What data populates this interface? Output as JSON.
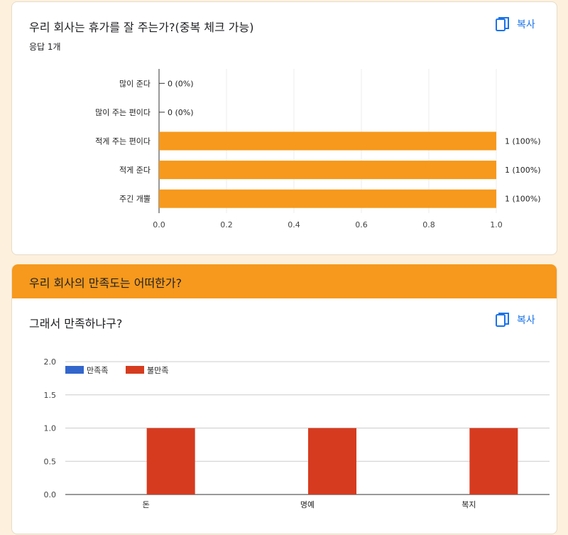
{
  "card1": {
    "title": "우리 회사는 휴가를 잘 주는가?(중복 체크 가능)",
    "response_count": "응답 1개",
    "copy_label": "복사"
  },
  "section2": {
    "header": "우리 회사의 만족도는 어떠한가?",
    "question_title": "그래서 만족하냐구?",
    "copy_label": "복사"
  },
  "colors": {
    "orange": "#f6991c",
    "bar_orange": "#f6991c",
    "blue": "#3366cc",
    "red": "#d63b1f",
    "link_blue": "#1a73e8"
  },
  "chart_data": [
    {
      "type": "bar",
      "orientation": "horizontal",
      "categories": [
        "많이 준다",
        "많이 주는 편이다",
        "적게 주는 편이다",
        "적게 준다",
        "주긴 개뿔"
      ],
      "values": [
        0,
        0,
        1,
        1,
        1
      ],
      "data_labels": [
        "0 (0%)",
        "0 (0%)",
        "1 (100%)",
        "1 (100%)",
        "1 (100%)"
      ],
      "xlim": [
        0,
        1.0
      ],
      "x_ticks": [
        "0.0",
        "0.2",
        "0.4",
        "0.6",
        "0.8",
        "1.0"
      ],
      "grid": true,
      "color": "#f6991c"
    },
    {
      "type": "bar",
      "orientation": "vertical",
      "categories": [
        "돈",
        "명예",
        "복지"
      ],
      "series": [
        {
          "name": "만족족",
          "values": [
            0,
            0,
            0
          ],
          "color": "#3366cc"
        },
        {
          "name": "불만족",
          "values": [
            1,
            1,
            1
          ],
          "color": "#d63b1f"
        }
      ],
      "ylim": [
        0,
        2.0
      ],
      "y_ticks": [
        "0.0",
        "0.5",
        "1.0",
        "1.5",
        "2.0"
      ],
      "legend": "top-left",
      "grid": true
    }
  ]
}
